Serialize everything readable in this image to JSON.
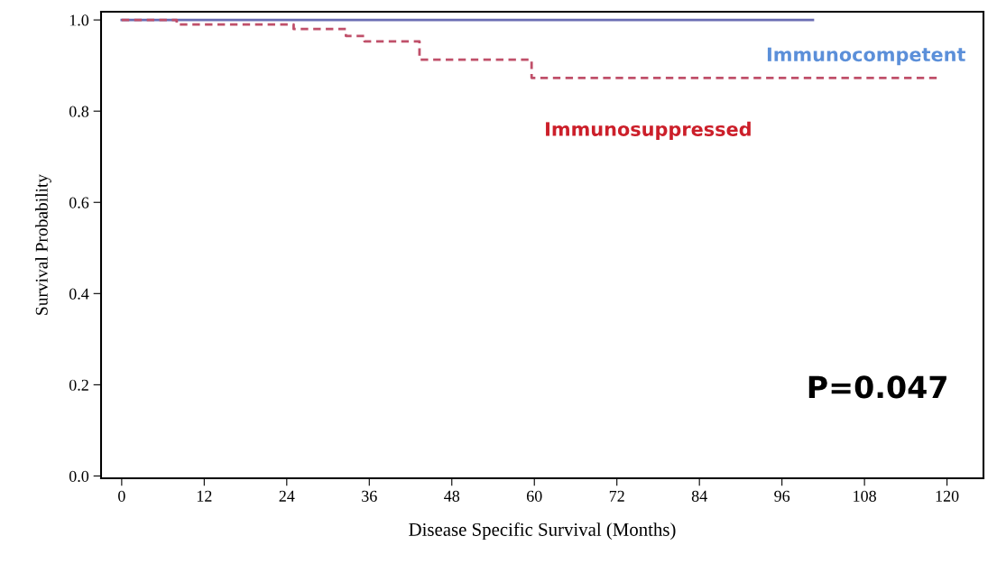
{
  "chart_data": {
    "type": "step",
    "xlabel": "Disease Specific Survival (Months)",
    "ylabel": "Survival Probability",
    "series": [
      {
        "name": "Immunocompetent",
        "color": "#6a6db3",
        "line_style": "solid",
        "x": [
          0,
          100.5
        ],
        "values": [
          1.0,
          1.0
        ]
      },
      {
        "name": "Immunosuppressed",
        "color": "#c0506a",
        "line_style": "dashed",
        "x": [
          0,
          8,
          25,
          32.6,
          35.3,
          43.3,
          59.6,
          118.5
        ],
        "values": [
          1.0,
          0.99,
          0.98,
          0.965,
          0.953,
          0.913,
          0.873,
          0.873
        ]
      }
    ],
    "xlim": [
      -3,
      125.3
    ],
    "xticks": [
      0,
      12,
      24,
      36,
      48,
      60,
      72,
      84,
      96,
      108,
      120
    ],
    "ylim": [
      -0.005,
      1.018
    ],
    "yticks": [
      {
        "value": 0,
        "label": "0.0"
      },
      {
        "value": 0.2,
        "label": "0.2"
      },
      {
        "value": 0.4,
        "label": "0.4"
      },
      {
        "value": 0.6,
        "label": "0.6"
      },
      {
        "value": 0.8,
        "label": "0.8"
      },
      {
        "value": 1,
        "label": "1.0"
      }
    ],
    "grid": false,
    "legend": false,
    "marker": "none",
    "annotations": [
      "P=0.047"
    ]
  }
}
